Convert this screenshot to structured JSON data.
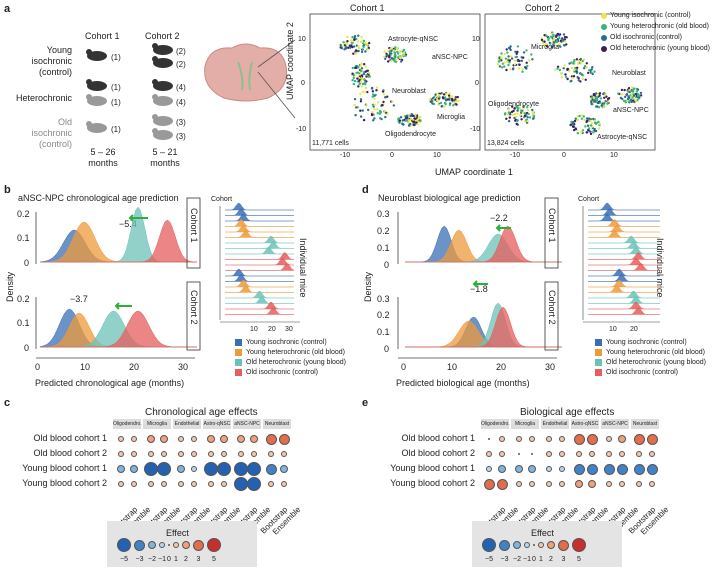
{
  "panel_labels": {
    "a": "a",
    "b": "b",
    "c": "c",
    "d": "d",
    "e": "e"
  },
  "panel_a": {
    "cohort1_label": "Cohort 1",
    "cohort2_label": "Cohort 2",
    "groups": [
      {
        "name": "Young isochronic (control)",
        "c1": [
          "(1)"
        ],
        "c2": [
          "(2)",
          "(2)"
        ]
      },
      {
        "name": "Heterochronic",
        "c1": [
          "(1)",
          "(1)"
        ],
        "c2": [
          "(4)",
          "(4)"
        ]
      },
      {
        "name": "Old isochronic (control)",
        "c1": [
          "(1)"
        ],
        "c2": [
          "(3)",
          "(3)"
        ]
      }
    ],
    "group_label_lines": [
      [
        "Young",
        "isochronic",
        "(control)"
      ],
      [
        "Heterochronic"
      ],
      [
        "Old",
        "isochronic",
        "(control)"
      ]
    ],
    "age_c1": "5 – 26",
    "age_c2": "5 – 21",
    "months": "months",
    "umap1_title": "Cohort 1",
    "umap2_title": "Cohort 2",
    "umap_xlabel": "UMAP coordinate 1",
    "umap_ylabel": "UMAP coordinate 2",
    "umap1_cells": "11,771 cells",
    "umap2_cells": "13,824 cells",
    "umap1_labels": [
      "Astrocyte-qNSC",
      "aNSC-NPC",
      "Neuroblast",
      "Microglia",
      "Oligodendrocyte"
    ],
    "umap2_labels": [
      "Microglia",
      "Neuroblast",
      "Oligodendrocyte",
      "aNSC-NPC",
      "Astrocyte-qNSC"
    ],
    "x_ticks": [
      "-10",
      "0",
      "10"
    ],
    "y_ticks": [
      "10",
      "0",
      "-10"
    ],
    "legend": [
      {
        "label": "Young isochronic (control)",
        "color": "#e8e84a"
      },
      {
        "label": "Young heterochronic (old blood)",
        "color": "#3ab47f"
      },
      {
        "label": "Old isochronic (control)",
        "color": "#2b6d8e"
      },
      {
        "label": "Old heterochronic (young blood)",
        "color": "#3f1d5c"
      }
    ]
  },
  "panel_b": {
    "title": "aNSC-NPC chronological age prediction",
    "xlabel": "Predicted chronological age (months)",
    "ylabel": "Density",
    "shift1": "−5.4",
    "shift2": "−3.7",
    "cohort1": "Cohort 1",
    "cohort2": "Cohort 2",
    "x_ticks": [
      "0",
      "10",
      "20",
      "30"
    ],
    "y_ticks": [
      "0.2",
      "0.1",
      "0"
    ],
    "ridge_header": "Cohort",
    "ridge_ylabel": "Individual mice",
    "ridge_x_ticks": [
      "10",
      "20",
      "30"
    ],
    "legend": [
      {
        "label": "Young isochronic (control)",
        "color": "#3a6fb5"
      },
      {
        "label": "Young heterochronic (old blood)",
        "color": "#ee9a3b"
      },
      {
        "label": "Old heterochronic (young blood)",
        "color": "#6cc2b8"
      },
      {
        "label": "Old isochronic (control)",
        "color": "#e55d5d"
      }
    ]
  },
  "panel_d": {
    "title": "Neuroblast biological age prediction",
    "xlabel": "Predicted biological age (months)",
    "ylabel": "Density",
    "shift1": "−2.2",
    "shift2": "−1.8",
    "cohort1": "Cohort 1",
    "cohort2": "Cohort 2",
    "x_ticks": [
      "0",
      "10",
      "20",
      "30"
    ],
    "y_ticks": [
      "0.3",
      "0.2",
      "0.1",
      "0"
    ],
    "ridge_header": "Cohort",
    "ridge_ylabel": "Individual mice",
    "ridge_x_ticks": [
      "10",
      "20"
    ],
    "legend": [
      {
        "label": "Young isochronic (control)",
        "color": "#3a6fb5"
      },
      {
        "label": "Young heterochronic (old blood)",
        "color": "#ee9a3b"
      },
      {
        "label": "Old heterochronic (young blood)",
        "color": "#6cc2b8"
      },
      {
        "label": "Old isochronic (control)",
        "color": "#e55d5d"
      }
    ]
  },
  "panel_c": {
    "title": "Chronological age effects",
    "cell_types": [
      "Oligodendro.",
      "Microglia",
      "Endothelial",
      "Astro-qNSC",
      "aNSC-NPC",
      "Neuroblast"
    ],
    "rows": [
      "Old blood cohort 1",
      "Old blood cohort 2",
      "Young blood cohort 1",
      "Young blood cohort 2"
    ],
    "cols": [
      "Bootstrap",
      "Ensemble"
    ],
    "effects": [
      [
        [
          1,
          1
        ],
        [
          2,
          2
        ],
        [
          1,
          1
        ],
        [
          2,
          2
        ],
        [
          2,
          2
        ],
        [
          3,
          3
        ]
      ],
      [
        [
          1,
          1
        ],
        [
          1,
          0.5
        ],
        [
          1,
          1
        ],
        [
          1,
          1
        ],
        [
          1,
          1
        ],
        [
          1,
          1
        ]
      ],
      [
        [
          -2,
          -2
        ],
        [
          -5,
          -5
        ],
        [
          -2,
          -1
        ],
        [
          -5,
          -5
        ],
        [
          -5,
          -5
        ],
        [
          -3,
          -2
        ]
      ],
      [
        [
          1,
          1
        ],
        [
          1,
          1
        ],
        [
          1,
          1
        ],
        [
          1,
          1
        ],
        [
          -5,
          -5
        ],
        [
          1,
          1
        ]
      ]
    ]
  },
  "panel_e": {
    "title": "Biological age effects",
    "cell_types": [
      "Oligodendro.",
      "Microglia",
      "Endothelial",
      "Astro-qNSC",
      "aNSC-NPC",
      "Neuroblast"
    ],
    "rows": [
      "Old blood cohort 1",
      "Old blood cohort 2",
      "Young blood cohort 1",
      "Young blood cohort 2"
    ],
    "cols": [
      "Bootstrap",
      "Ensemble"
    ],
    "effects": [
      [
        [
          0.2,
          1
        ],
        [
          1,
          1
        ],
        [
          1,
          1
        ],
        [
          3,
          3
        ],
        [
          1,
          2
        ],
        [
          3,
          3
        ]
      ],
      [
        [
          1,
          1
        ],
        [
          0.2,
          0.2
        ],
        [
          1,
          1
        ],
        [
          1,
          1
        ],
        [
          1,
          1
        ],
        [
          1,
          1
        ]
      ],
      [
        [
          -1,
          -2
        ],
        [
          -2,
          -2
        ],
        [
          -1,
          -1
        ],
        [
          -3,
          -3
        ],
        [
          -3,
          -3
        ],
        [
          -3,
          -3
        ]
      ],
      [
        [
          3,
          3
        ],
        [
          1,
          1
        ],
        [
          1,
          1
        ],
        [
          2,
          2
        ],
        [
          1,
          1
        ],
        [
          1,
          1
        ]
      ]
    ]
  },
  "effect_legend": {
    "title": "Effect",
    "ticks": [
      "−5",
      "−3",
      "−2",
      "−1",
      "0",
      "1",
      "2",
      "3",
      "5"
    ],
    "values": [
      -5,
      -3,
      -2,
      -1,
      0,
      1,
      2,
      3,
      5
    ]
  }
}
